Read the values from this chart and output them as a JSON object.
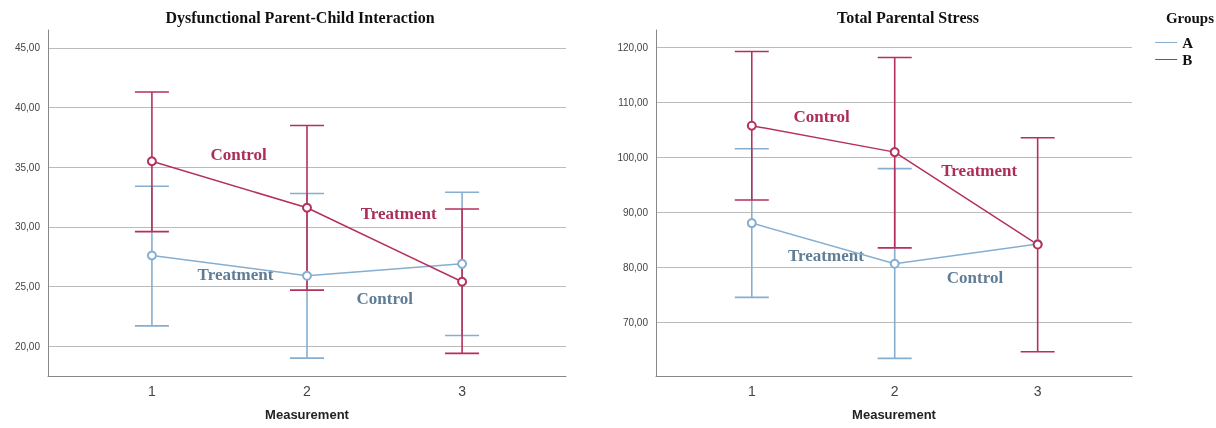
{
  "chart_data": [
    {
      "type": "line",
      "title": "Dysfunctional Parent-Child Interaction",
      "xlabel": "Measurement",
      "x": [
        1,
        2,
        3
      ],
      "xlim": [
        0.33,
        3.67
      ],
      "xticks": [
        1,
        2,
        3
      ],
      "ylim": [
        17.5,
        46.5
      ],
      "yticks": [
        {
          "value": 20,
          "label": "20,00"
        },
        {
          "value": 25,
          "label": "25,00"
        },
        {
          "value": 30,
          "label": "30,00"
        },
        {
          "value": 35,
          "label": "35,00"
        },
        {
          "value": 40,
          "label": "40,00"
        },
        {
          "value": 45,
          "label": "45,00"
        }
      ],
      "grid": "y",
      "legend": false,
      "marker": "circle",
      "line_style": "solid",
      "series": [
        {
          "color": "#86aed0",
          "values": [
            27.6,
            25.9,
            26.9
          ],
          "errors": [
            [
              21.7,
              33.4
            ],
            [
              19.0,
              32.8
            ],
            [
              20.9,
              32.9
            ]
          ]
        },
        {
          "color": "#b5305a",
          "values": [
            35.5,
            31.6,
            25.4
          ],
          "errors": [
            [
              29.6,
              41.3
            ],
            [
              24.7,
              38.5
            ],
            [
              19.4,
              31.5
            ]
          ]
        }
      ],
      "annotations": [
        "Control",
        "Treatment",
        "Treatment",
        "Control"
      ]
    },
    {
      "type": "line",
      "title": "Total Parental Stress",
      "xlabel": "Measurement",
      "legend_title": "Groups",
      "x": [
        1,
        2,
        3
      ],
      "xlim": [
        0.33,
        3.66
      ],
      "xticks": [
        1,
        2,
        3
      ],
      "ylim": [
        60.3,
        123.2
      ],
      "yticks": [
        {
          "value": 70,
          "label": "70,00"
        },
        {
          "value": 80,
          "label": "80,00"
        },
        {
          "value": 90,
          "label": "90,00"
        },
        {
          "value": 100,
          "label": "100,00"
        },
        {
          "value": 110,
          "label": "110,00"
        },
        {
          "value": 120,
          "label": "120,00"
        }
      ],
      "grid": "y",
      "legend": "top right",
      "marker": "circle",
      "line_style": "solid",
      "series": [
        {
          "name": "A",
          "color": "#86aed0",
          "values": [
            88.1,
            80.7,
            84.3
          ],
          "errors": [
            [
              74.6,
              101.6
            ],
            [
              63.5,
              98.0
            ],
            null
          ]
        },
        {
          "name": "B",
          "color": "#b5305a",
          "values": [
            105.8,
            101.0,
            84.2
          ],
          "errors": [
            [
              92.3,
              119.3
            ],
            [
              83.6,
              118.2
            ],
            [
              64.7,
              103.6
            ]
          ]
        }
      ],
      "annotations": [
        "Control",
        "Treatment",
        "Treatment",
        "Control"
      ]
    }
  ]
}
